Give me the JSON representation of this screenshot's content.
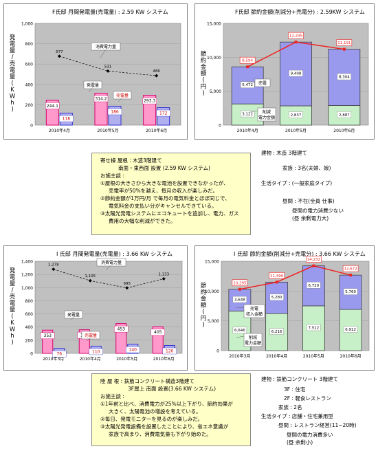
{
  "chart_data": [
    {
      "id": "f_gen",
      "type": "bar",
      "title": "F氏邸 月間発電量(売電量) : 2.59 KW システム",
      "ylabel": "発電量/売電量(KWh)",
      "ylim": [
        0,
        1000
      ],
      "yticks": [
        "0",
        "200",
        "400",
        "600",
        "800",
        "1,000"
      ],
      "categories": [
        "2010年4月",
        "2010年5月",
        "2010年6月"
      ],
      "series": [
        {
          "name": "発電量",
          "values": [
            244.1,
            314.2,
            293.3
          ],
          "labels": [
            "244.1",
            "314.2",
            "293.3"
          ],
          "color": "#ff99cc",
          "stroke": "#d4006a"
        },
        {
          "name": "売電量",
          "values": [
            118,
            186,
            172
          ],
          "labels": [
            "118",
            "186",
            "172"
          ],
          "color": "#b0b0f0",
          "stroke": "#3333cc"
        },
        {
          "name": "消費電力量",
          "type": "line",
          "values": [
            677,
            531,
            486
          ],
          "labels": [
            "677",
            "531",
            "486"
          ],
          "color": "#000000"
        }
      ],
      "callouts": [
        "消費電力量",
        "発電量",
        "売電量"
      ]
    },
    {
      "id": "f_save",
      "type": "stacked_bar",
      "title": "F氏邸 節約金額(削減分+売電分) : 2.59KW システム",
      "ylabel": "節約金額(円)",
      "ylim": [
        0,
        15000
      ],
      "yticks": [
        "0",
        "5,000",
        "10,000",
        "15,000"
      ],
      "categories": [
        "2010年4月",
        "2010年5月",
        "2010年6月"
      ],
      "series": [
        {
          "name": "削減電力金額",
          "values": [
            3122,
            2837,
            2887
          ],
          "labels": [
            "3,122",
            "2,837",
            "2,887"
          ],
          "color": "#c8f0c8"
        },
        {
          "name": "売電",
          "values": [
            5472,
            9408,
            8304
          ],
          "labels": [
            "5,472",
            "9,408",
            "8,304"
          ],
          "color": "#9999ee"
        },
        {
          "name": "合計",
          "type": "line",
          "values": [
            8594,
            12245,
            11191
          ],
          "labels": [
            "8,594",
            "12,245",
            "11,191"
          ],
          "color": "#ee2222"
        }
      ],
      "callouts": [
        "売電",
        "削減\n電力金額"
      ]
    },
    {
      "id": "i_gen",
      "type": "bar",
      "title": "I 氏邸 月間発電量(売電量) : 3.66 KW システム",
      "ylabel": "発電量/売電量(KWh)",
      "ylim": [
        0,
        1400
      ],
      "yticks": [
        "0",
        "200",
        "400",
        "600",
        "800",
        "1,000",
        "1,200",
        "1,400"
      ],
      "categories": [
        "2010年3月",
        "2010年4月",
        "2010年5月",
        "2010年6月"
      ],
      "series": [
        {
          "name": "発電量",
          "values": [
            353,
            359,
            453,
            405
          ],
          "labels": [
            "353",
            "359",
            "453",
            "405"
          ],
          "color": "#ff99cc",
          "stroke": "#d4006a"
        },
        {
          "name": "売電量",
          "values": [
            76,
            110,
            140,
            120
          ],
          "labels": [
            "76",
            "110",
            "140",
            "120"
          ],
          "color": "#b0b0f0",
          "stroke": "#3333cc"
        },
        {
          "name": "消費電力量",
          "type": "line",
          "values": [
            1278,
            1105,
            995,
            1133
          ],
          "labels": [
            "1,278",
            "1,105",
            "995",
            "1,133"
          ],
          "color": "#000000"
        }
      ],
      "callouts": [
        "消費電力量",
        "発電量",
        "売電量"
      ]
    },
    {
      "id": "i_save",
      "type": "stacked_bar",
      "title": "I 氏邸 節約金額(削減分+売電分) : 3.66 KW システム",
      "ylabel": "節約金額(円)",
      "ylim": [
        0,
        15000
      ],
      "yticks": [
        "0",
        "5,000",
        "10,000",
        "15,000"
      ],
      "categories": [
        "2010年3月",
        "2010年4月",
        "2010年5月",
        "2010年6月"
      ],
      "series": [
        {
          "name": "削減電力金額",
          "values": [
            6646,
            6216,
            7512,
            6912
          ],
          "labels": [
            "6,646",
            "6,216",
            "7,512",
            "6,912"
          ],
          "color": "#c8f0c8"
        },
        {
          "name": "売電",
          "values": [
            3648,
            5280,
            6720,
            5760
          ],
          "labels": [
            "3,648",
            "5,280",
            "6,720",
            "5,760"
          ],
          "color": "#9999ee"
        },
        {
          "name": "合計",
          "type": "line",
          "values": [
            10295,
            11496,
            14232,
            12672
          ],
          "labels": [
            "10,295",
            "11,496",
            "14,232",
            "12,672"
          ],
          "color": "#ee2222"
        }
      ],
      "callouts": [
        "売電\n収入金額",
        "削減\n電力金額"
      ]
    }
  ],
  "f_callout": {
    "lines": [
      "寄せ棟 屋根 : 木造3階建て",
      "南面・東西面 設置 (2.59 KW システム)",
      "お施主談 :",
      "①屋根の大きさから大きな電池を設置できなかったが、",
      "売電率が50%を越え、毎月の収入が楽しみだ。",
      "②節約金額が1万円/月 で毎月の電気料金とほぼ同じで、",
      "電気料金の支払い分がキャンセルできている。",
      "③太陽光発電システムにエコキュートを追加し、電力、ガス",
      "費用の大幅な削減ができた。"
    ]
  },
  "f_info": {
    "lines": [
      "建物 : 木造 3階建て",
      "家族 : 3名(夫婦、娘)",
      "生活タイプ : (一般家庭タイプ)",
      "昼間 : 不在(全員 仕事)",
      "昼間の電力消費少ない",
      "(昼 余剰電力大)"
    ]
  },
  "i_callout": {
    "lines": [
      "陸 屋 根 : 鉄筋コンクリート構造3階建て",
      "3F屋上 南面 設置(3.66 KW システム)",
      "お施主談 :",
      "①1年前と比べ、消費電力が25%以上下がり、節約効果が",
      "大きく、太陽電池の増設を考えている。",
      "②毎日、発電モニターを見るのが楽しみだ。",
      "③太陽光発電設備を設置したことにより、省エネ意識が",
      "家族で高まり、消費電気量も下がり始めた。"
    ]
  },
  "i_info": {
    "lines": [
      "建物 : 鉄筋コンクリート 3階建て",
      "3F : 住宅",
      "2F : 軽食レストラン",
      "家族 : 2名",
      "生活タイプ : 店舗・住宅兼用型",
      "昼間 : レストラン経営(11~20時)",
      "昼間の電力消費多い",
      "(昼 余剰小)"
    ]
  }
}
